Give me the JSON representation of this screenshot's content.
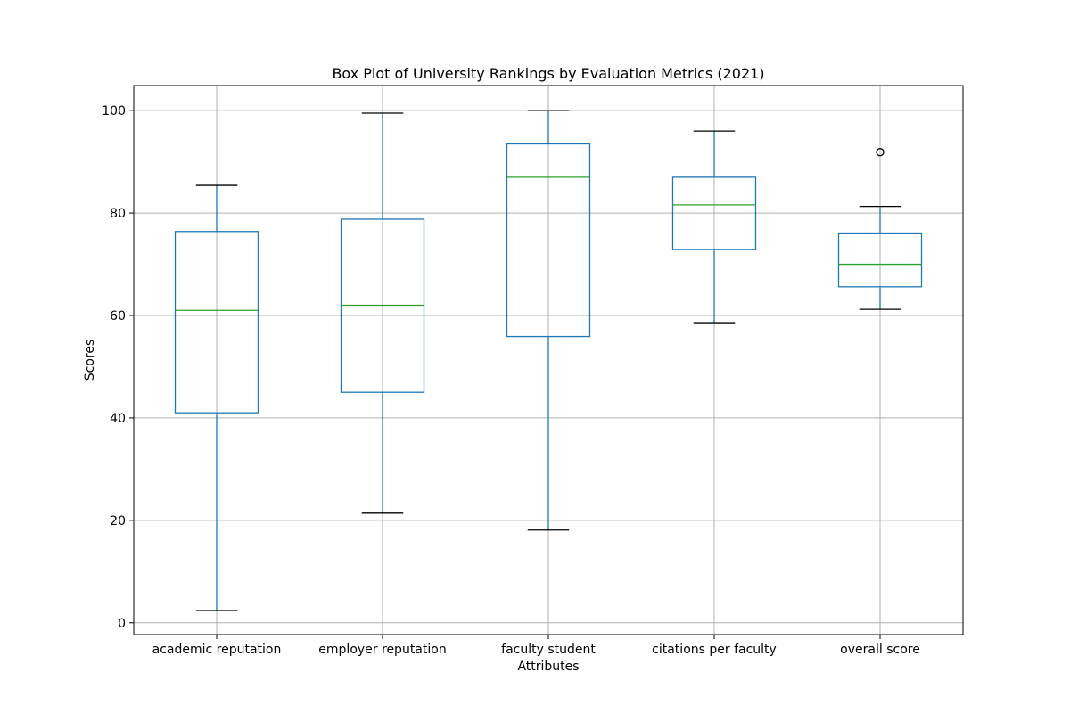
{
  "chart_data": {
    "type": "box",
    "title": "Box Plot of University Rankings by Evaluation Metrics (2021)",
    "xlabel": "Attributes",
    "ylabel": "Scores",
    "ylim": [
      -2.3,
      104.9
    ],
    "y_ticks": [
      0,
      20,
      40,
      60,
      80,
      100
    ],
    "grid": true,
    "colors": {
      "box": "#1f77b4",
      "median": "#2ca02c",
      "cap": "#000000",
      "grid": "#b0b0b0",
      "outlier": "#000000"
    },
    "categories": [
      "academic reputation",
      "employer reputation",
      "faculty student",
      "citations per faculty",
      "overall score"
    ],
    "boxes": [
      {
        "whisker_low": 2.4,
        "q1": 41.0,
        "median": 61.0,
        "q3": 76.4,
        "whisker_high": 85.4,
        "outliers": []
      },
      {
        "whisker_low": 21.4,
        "q1": 45.0,
        "median": 62.0,
        "q3": 78.8,
        "whisker_high": 99.5,
        "outliers": []
      },
      {
        "whisker_low": 18.1,
        "q1": 55.9,
        "median": 87.0,
        "q3": 93.5,
        "whisker_high": 100.0,
        "outliers": []
      },
      {
        "whisker_low": 58.6,
        "q1": 72.9,
        "median": 81.6,
        "q3": 87.0,
        "whisker_high": 96.0,
        "outliers": []
      },
      {
        "whisker_low": 61.2,
        "q1": 65.6,
        "median": 70.0,
        "q3": 76.1,
        "whisker_high": 81.3,
        "outliers": [
          91.9
        ]
      }
    ]
  }
}
